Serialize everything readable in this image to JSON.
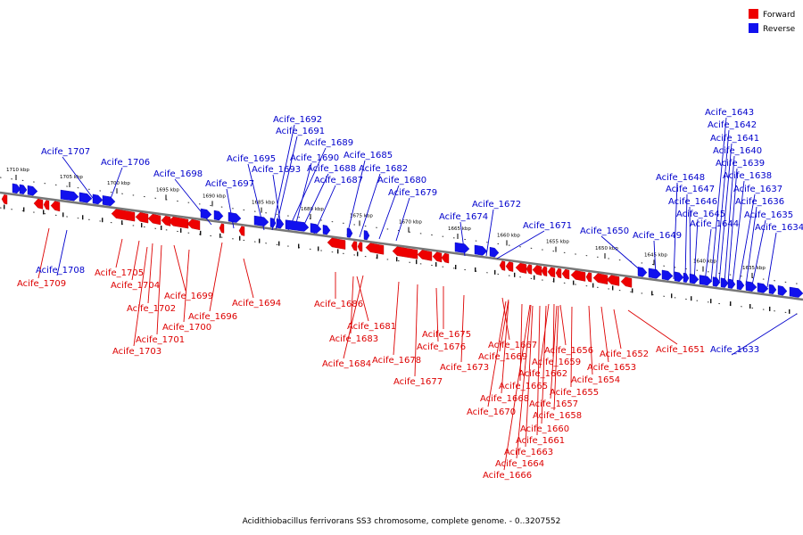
{
  "caption": "Acidithiobacillus ferrivorans SS3 chromosome, complete genome. - 0..3207552",
  "legend": [
    {
      "label": "Forward",
      "color": "#ee0000"
    },
    {
      "label": "Reverse",
      "color": "#1111ee"
    }
  ],
  "colors": {
    "forward": "#ee0000",
    "reverse": "#1111ee",
    "backbone": "#777777",
    "fwd_label": "#dd0000",
    "rev_label": "#0000cc"
  },
  "scale_ticks": [
    "1710 kbp",
    "1705 kbp",
    "1700 kbp",
    "1695 kbp",
    "1690 kbp",
    "1685 kbp",
    "1680 kbp",
    "1675 kbp",
    "1670 kbp",
    "1665 kbp",
    "1660 kbp",
    "1655 kbp",
    "1650 kbp",
    "1645 kbp",
    "1640 kbp",
    "1635 kbp"
  ],
  "genes_forward": [
    "Acife_1709",
    "Acife_1705",
    "Acife_1704",
    "Acife_1702",
    "Acife_1699",
    "Acife_1701",
    "Acife_1700",
    "Acife_1703",
    "Acife_1696",
    "Acife_1694",
    "Acife_1686",
    "Acife_1681",
    "Acife_1683",
    "Acife_1684",
    "Acife_1678",
    "Acife_1677",
    "Acife_1675",
    "Acife_1676",
    "Acife_1673",
    "Acife_1667",
    "Acife_1669",
    "Acife_1656",
    "Acife_1659",
    "Acife_1662",
    "Acife_1665",
    "Acife_1668",
    "Acife_1670",
    "Acife_1655",
    "Acife_1657",
    "Acife_1658",
    "Acife_1660",
    "Acife_1661",
    "Acife_1663",
    "Acife_1664",
    "Acife_1666",
    "Acife_1652",
    "Acife_1653",
    "Acife_1654",
    "Acife_1651"
  ],
  "genes_reverse": [
    "Acife_1707",
    "Acife_1706",
    "Acife_1698",
    "Acife_1697",
    "Acife_1695",
    "Acife_1693",
    "Acife_1692",
    "Acife_1691",
    "Acife_1689",
    "Acife_1690",
    "Acife_1688",
    "Acife_1687",
    "Acife_1685",
    "Acife_1682",
    "Acife_1680",
    "Acife_1679",
    "Acife_1674",
    "Acife_1672",
    "Acife_1671",
    "Acife_1650",
    "Acife_1649",
    "Acife_1648",
    "Acife_1647",
    "Acife_1646",
    "Acife_1645",
    "Acife_1644",
    "Acife_1643",
    "Acife_1642",
    "Acife_1641",
    "Acife_1640",
    "Acife_1639",
    "Acife_1638",
    "Acife_1637",
    "Acife_1636",
    "Acife_1635",
    "Acife_1634",
    "Acife_1708",
    "Acife_1633"
  ]
}
